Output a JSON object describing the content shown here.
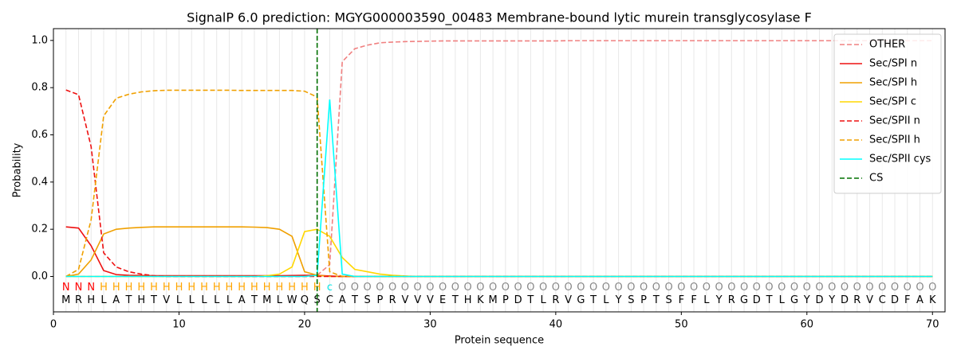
{
  "chart_data": {
    "type": "line",
    "title": "SignalP 6.0 prediction: MGYG000003590_00483 Membrane-bound lytic murein transglycosylase F",
    "xlabel": "Protein sequence",
    "ylabel": "Probability",
    "xlim": [
      0,
      71
    ],
    "ylim": [
      -0.15,
      1.05
    ],
    "xticks": [
      0,
      10,
      20,
      30,
      40,
      50,
      60,
      70
    ],
    "yticks": [
      {
        "value": 0,
        "label": "0.0"
      },
      0.2,
      0.4,
      0.6,
      0.8,
      {
        "value": 1,
        "label": "1.0"
      }
    ],
    "grid": true,
    "legend": "upper right",
    "x": [
      1,
      2,
      3,
      4,
      5,
      6,
      7,
      8,
      9,
      10,
      11,
      12,
      13,
      14,
      15,
      16,
      17,
      18,
      19,
      20,
      21,
      22,
      23,
      24,
      25,
      26,
      27,
      28,
      29,
      30,
      31,
      32,
      33,
      34,
      35,
      36,
      37,
      38,
      39,
      40,
      41,
      42,
      43,
      44,
      45,
      46,
      47,
      48,
      49,
      50,
      51,
      52,
      53,
      54,
      55,
      56,
      57,
      58,
      59,
      60,
      61,
      62,
      63,
      64,
      65,
      66,
      67,
      68,
      69,
      70
    ],
    "sequence": [
      "M",
      "R",
      "H",
      "L",
      "A",
      "T",
      "H",
      "T",
      "V",
      "L",
      "L",
      "L",
      "L",
      "L",
      "A",
      "T",
      "M",
      "L",
      "W",
      "Q",
      "S",
      "C",
      "A",
      "T",
      "S",
      "P",
      "R",
      "V",
      "V",
      "V",
      "E",
      "T",
      "H",
      "K",
      "M",
      "P",
      "D",
      "T",
      "L",
      "R",
      "V",
      "G",
      "T",
      "L",
      "Y",
      "S",
      "P",
      "T",
      "S",
      "F",
      "F",
      "L",
      "Y",
      "R",
      "G",
      "D",
      "T",
      "L",
      "G",
      "Y",
      "D",
      "Y",
      "D",
      "R",
      "V",
      "C",
      "D",
      "F",
      "A",
      "K"
    ],
    "labels": [
      "N",
      "N",
      "N",
      "H",
      "H",
      "H",
      "H",
      "H",
      "H",
      "H",
      "H",
      "H",
      "H",
      "H",
      "H",
      "H",
      "H",
      "H",
      "H",
      "H",
      "H",
      "c",
      "O",
      "O",
      "O",
      "O",
      "O",
      "O",
      "O",
      "O",
      "O",
      "O",
      "O",
      "O",
      "O",
      "O",
      "O",
      "O",
      "O",
      "O",
      "O",
      "O",
      "O",
      "O",
      "O",
      "O",
      "O",
      "O",
      "O",
      "O",
      "O",
      "O",
      "O",
      "O",
      "O",
      "O",
      "O",
      "O",
      "O",
      "O",
      "O",
      "O",
      "O",
      "O",
      "O",
      "O",
      "O",
      "O",
      "O",
      "O"
    ],
    "label_colors": {
      "N": "#ff0000",
      "H": "#ffa500",
      "c": "#00e5e5",
      "O": "#888888"
    },
    "series": [
      {
        "name": "OTHER",
        "color": "#f08080",
        "dashed": true,
        "values": [
          0,
          0,
          0,
          0,
          0,
          0,
          0,
          0,
          0,
          0,
          0,
          0,
          0,
          0,
          0,
          0,
          0,
          0,
          0,
          0,
          0.005,
          0.05,
          0.91,
          0.965,
          0.98,
          0.99,
          0.993,
          0.995,
          0.996,
          0.997,
          0.998,
          0.998,
          0.998,
          0.998,
          0.998,
          0.998,
          0.998,
          0.998,
          0.998,
          0.998,
          0.999,
          0.999,
          0.999,
          0.999,
          0.999,
          0.999,
          0.999,
          0.999,
          0.999,
          0.999,
          0.999,
          0.999,
          0.999,
          0.999,
          0.999,
          0.999,
          0.999,
          0.999,
          0.999,
          0.999,
          0.999,
          0.999,
          0.999,
          0.999,
          0.999,
          0.999,
          0.999,
          0.999,
          0.999,
          0.999
        ]
      },
      {
        "name": "Sec/SPI n",
        "color": "#ee1111",
        "dashed": false,
        "values": [
          0.21,
          0.205,
          0.13,
          0.025,
          0.008,
          0.005,
          0.004,
          0.003,
          0.003,
          0.003,
          0.003,
          0.003,
          0.003,
          0.003,
          0.003,
          0.003,
          0.003,
          0.003,
          0.004,
          0.005,
          0.005,
          0.002,
          0,
          0,
          0,
          0,
          0,
          0,
          0,
          0,
          0,
          0,
          0,
          0,
          0,
          0,
          0,
          0,
          0,
          0,
          0,
          0,
          0,
          0,
          0,
          0,
          0,
          0,
          0,
          0,
          0,
          0,
          0,
          0,
          0,
          0,
          0,
          0,
          0,
          0,
          0,
          0,
          0,
          0,
          0,
          0,
          0,
          0,
          0,
          0
        ]
      },
      {
        "name": "Sec/SPI h",
        "color": "#f0a000",
        "dashed": false,
        "values": [
          0,
          0.01,
          0.07,
          0.18,
          0.2,
          0.205,
          0.208,
          0.21,
          0.21,
          0.21,
          0.21,
          0.21,
          0.21,
          0.21,
          0.21,
          0.209,
          0.207,
          0.2,
          0.17,
          0.02,
          0.005,
          0,
          0,
          0,
          0,
          0,
          0,
          0,
          0,
          0,
          0,
          0,
          0,
          0,
          0,
          0,
          0,
          0,
          0,
          0,
          0,
          0,
          0,
          0,
          0,
          0,
          0,
          0,
          0,
          0,
          0,
          0,
          0,
          0,
          0,
          0,
          0,
          0,
          0,
          0,
          0,
          0,
          0,
          0,
          0,
          0,
          0,
          0,
          0,
          0
        ]
      },
      {
        "name": "Sec/SPI c",
        "color": "#ffd700",
        "dashed": false,
        "values": [
          0,
          0,
          0,
          0,
          0,
          0,
          0,
          0,
          0,
          0,
          0,
          0,
          0,
          0,
          0,
          0,
          0.003,
          0.01,
          0.04,
          0.19,
          0.2,
          0.17,
          0.08,
          0.03,
          0.02,
          0.01,
          0.005,
          0.002,
          0,
          0,
          0,
          0,
          0,
          0,
          0,
          0,
          0,
          0,
          0,
          0,
          0,
          0,
          0,
          0,
          0,
          0,
          0,
          0,
          0,
          0,
          0,
          0,
          0,
          0,
          0,
          0,
          0,
          0,
          0,
          0,
          0,
          0,
          0,
          0,
          0,
          0,
          0,
          0,
          0,
          0
        ]
      },
      {
        "name": "Sec/SPII n",
        "color": "#ee1111",
        "dashed": true,
        "values": [
          0.79,
          0.77,
          0.55,
          0.1,
          0.04,
          0.02,
          0.01,
          0.003,
          0,
          0,
          0,
          0,
          0,
          0,
          0,
          0,
          0,
          0,
          0,
          0,
          0,
          0,
          0,
          0,
          0,
          0,
          0,
          0,
          0,
          0,
          0,
          0,
          0,
          0,
          0,
          0,
          0,
          0,
          0,
          0,
          0,
          0,
          0,
          0,
          0,
          0,
          0,
          0,
          0,
          0,
          0,
          0,
          0,
          0,
          0,
          0,
          0,
          0,
          0,
          0,
          0,
          0,
          0,
          0,
          0,
          0,
          0,
          0,
          0,
          0
        ]
      },
      {
        "name": "Sec/SPII h",
        "color": "#f0a000",
        "dashed": true,
        "values": [
          0,
          0.03,
          0.24,
          0.68,
          0.755,
          0.772,
          0.782,
          0.787,
          0.789,
          0.789,
          0.789,
          0.789,
          0.789,
          0.789,
          0.788,
          0.788,
          0.788,
          0.788,
          0.788,
          0.785,
          0.76,
          0.02,
          0,
          0,
          0,
          0,
          0,
          0,
          0,
          0,
          0,
          0,
          0,
          0,
          0,
          0,
          0,
          0,
          0,
          0,
          0,
          0,
          0,
          0,
          0,
          0,
          0,
          0,
          0,
          0,
          0,
          0,
          0,
          0,
          0,
          0,
          0,
          0,
          0,
          0,
          0,
          0,
          0,
          0,
          0,
          0,
          0,
          0,
          0,
          0
        ]
      },
      {
        "name": "Sec/SPII cys",
        "color": "#00ffff",
        "dashed": false,
        "values": [
          0,
          0,
          0,
          0,
          0,
          0,
          0,
          0,
          0,
          0,
          0,
          0,
          0,
          0,
          0,
          0,
          0,
          0,
          0,
          0,
          0.005,
          0.75,
          0.01,
          0,
          0,
          0,
          0,
          0,
          0,
          0,
          0,
          0,
          0,
          0,
          0,
          0,
          0,
          0,
          0,
          0,
          0,
          0,
          0,
          0,
          0,
          0,
          0,
          0,
          0,
          0,
          0,
          0,
          0,
          0,
          0,
          0,
          0,
          0,
          0,
          0,
          0,
          0,
          0,
          0,
          0,
          0,
          0,
          0,
          0,
          0
        ]
      }
    ],
    "cs": {
      "name": "CS",
      "x": 21,
      "color": "#007000"
    }
  }
}
